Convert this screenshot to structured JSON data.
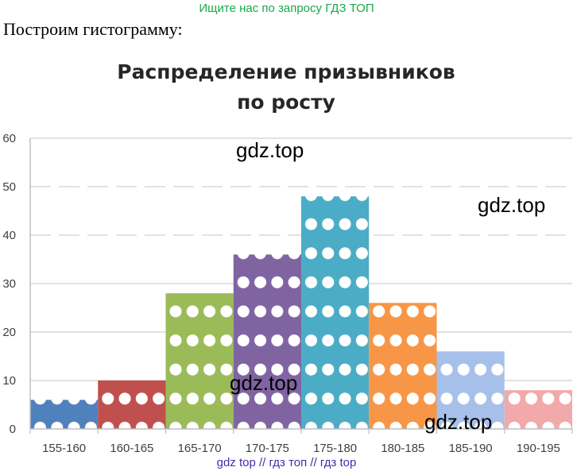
{
  "banner": "Ищите нас по запросу ГДЗ ТОП",
  "intro": "Построим гистограмму:",
  "watermarks": [
    "gdz.top",
    "gdz.top",
    "gdz.top",
    "gdz.top"
  ],
  "footer": "gdz top  //  гдз топ  //  гдз top",
  "colors": {
    "grid": "#d9d9d9",
    "axis": "#bfbfbf",
    "dot": "#ffffff"
  },
  "chart_data": {
    "type": "bar",
    "title": "Распределение призывников по росту",
    "title_lines": [
      "Распределение призывников",
      "по росту"
    ],
    "xlabel": "",
    "ylabel": "",
    "categories": [
      "155-160",
      "160-165",
      "165-170",
      "170-175",
      "175-180",
      "180-185",
      "185-190",
      "190-195"
    ],
    "values": [
      6,
      10,
      28,
      36,
      48,
      26,
      16,
      8
    ],
    "bar_colors": [
      "#4f81bd",
      "#c0504d",
      "#9bbb59",
      "#8064a2",
      "#4bacc6",
      "#f79646",
      "#a7c0ea",
      "#f2a9a9"
    ],
    "ylim": [
      0,
      60
    ],
    "yticks": [
      0,
      10,
      20,
      30,
      40,
      50,
      60
    ],
    "grid": true,
    "legend": "none",
    "pattern": "white dots"
  }
}
